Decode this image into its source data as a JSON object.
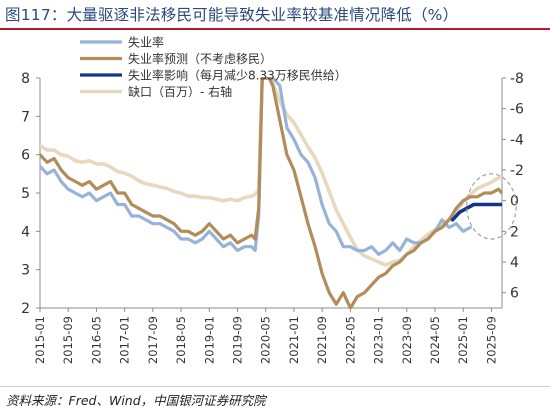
{
  "page": {
    "title": "图117：大量驱逐非法移民可能导致失业率较基准情况降低（%）",
    "source": "资料来源：Fred、Wind，中国银河证券研究院"
  },
  "colors": {
    "unemployment": "#98b3da",
    "forecast": "#b08d5a",
    "impact": "#14358c",
    "gap": "#e7d8bf",
    "title": "#2a4a7f",
    "rule": "#b8182b"
  },
  "chart_data": {
    "type": "line",
    "title": "大量驱逐非法移民可能导致失业率较基准情况降低（%）",
    "xlabel": "",
    "ylabel": "",
    "y2label": "",
    "ylim": [
      2,
      8
    ],
    "y2lim": [
      7,
      -8
    ],
    "yticks": [
      2,
      3,
      4,
      5,
      6,
      7,
      8
    ],
    "y2ticks": [
      6,
      4,
      2,
      0,
      -2,
      -4,
      -6,
      -8
    ],
    "xticks": [
      "2015-01",
      "2015-09",
      "2016-05",
      "2017-01",
      "2017-09",
      "2018-05",
      "2019-01",
      "2019-09",
      "2020-05",
      "2021-01",
      "2021-09",
      "2022-05",
      "2023-01",
      "2023-09",
      "2024-05",
      "2025-01",
      "2025-09"
    ],
    "xrange": [
      "2015-01",
      "2025-12"
    ],
    "grid": false,
    "legend_position": "top-left",
    "series": [
      {
        "name": "失业率",
        "axis": "left",
        "points": [
          [
            "2015-01",
            5.7
          ],
          [
            "2015-03",
            5.5
          ],
          [
            "2015-05",
            5.6
          ],
          [
            "2015-07",
            5.3
          ],
          [
            "2015-09",
            5.1
          ],
          [
            "2015-11",
            5.0
          ],
          [
            "2016-01",
            4.9
          ],
          [
            "2016-03",
            5.0
          ],
          [
            "2016-05",
            4.8
          ],
          [
            "2016-07",
            4.9
          ],
          [
            "2016-09",
            5.0
          ],
          [
            "2016-11",
            4.7
          ],
          [
            "2017-01",
            4.7
          ],
          [
            "2017-03",
            4.4
          ],
          [
            "2017-05",
            4.4
          ],
          [
            "2017-07",
            4.3
          ],
          [
            "2017-09",
            4.2
          ],
          [
            "2017-11",
            4.2
          ],
          [
            "2018-01",
            4.1
          ],
          [
            "2018-03",
            4.0
          ],
          [
            "2018-05",
            3.8
          ],
          [
            "2018-07",
            3.8
          ],
          [
            "2018-09",
            3.7
          ],
          [
            "2018-11",
            3.8
          ],
          [
            "2019-01",
            4.0
          ],
          [
            "2019-03",
            3.8
          ],
          [
            "2019-05",
            3.6
          ],
          [
            "2019-07",
            3.7
          ],
          [
            "2019-09",
            3.5
          ],
          [
            "2019-11",
            3.6
          ],
          [
            "2020-01",
            3.6
          ],
          [
            "2020-02",
            3.5
          ],
          [
            "2020-03",
            4.4
          ],
          [
            "2020-04",
            8.0
          ],
          [
            "2020-06",
            8.0
          ],
          [
            "2020-07",
            8.0
          ],
          [
            "2020-09",
            7.8
          ],
          [
            "2020-11",
            6.7
          ],
          [
            "2021-01",
            6.4
          ],
          [
            "2021-03",
            6.0
          ],
          [
            "2021-05",
            5.8
          ],
          [
            "2021-07",
            5.4
          ],
          [
            "2021-09",
            4.7
          ],
          [
            "2021-11",
            4.2
          ],
          [
            "2022-01",
            4.0
          ],
          [
            "2022-03",
            3.6
          ],
          [
            "2022-05",
            3.6
          ],
          [
            "2022-07",
            3.5
          ],
          [
            "2022-09",
            3.5
          ],
          [
            "2022-11",
            3.6
          ],
          [
            "2023-01",
            3.4
          ],
          [
            "2023-03",
            3.5
          ],
          [
            "2023-05",
            3.7
          ],
          [
            "2023-07",
            3.5
          ],
          [
            "2023-09",
            3.8
          ],
          [
            "2023-11",
            3.7
          ],
          [
            "2024-01",
            3.7
          ],
          [
            "2024-03",
            3.8
          ],
          [
            "2024-05",
            4.0
          ],
          [
            "2024-07",
            4.3
          ],
          [
            "2024-09",
            4.1
          ],
          [
            "2024-11",
            4.2
          ],
          [
            "2025-01",
            4.0
          ],
          [
            "2025-03",
            4.1
          ]
        ]
      },
      {
        "name": "失业率预测（不考虑移民）",
        "axis": "left",
        "points": [
          [
            "2015-01",
            6.0
          ],
          [
            "2015-03",
            5.8
          ],
          [
            "2015-05",
            5.9
          ],
          [
            "2015-07",
            5.6
          ],
          [
            "2015-09",
            5.4
          ],
          [
            "2015-11",
            5.3
          ],
          [
            "2016-01",
            5.2
          ],
          [
            "2016-03",
            5.3
          ],
          [
            "2016-05",
            5.1
          ],
          [
            "2016-07",
            5.2
          ],
          [
            "2016-09",
            5.3
          ],
          [
            "2016-11",
            5.0
          ],
          [
            "2017-01",
            5.0
          ],
          [
            "2017-03",
            4.7
          ],
          [
            "2017-05",
            4.6
          ],
          [
            "2017-07",
            4.5
          ],
          [
            "2017-09",
            4.4
          ],
          [
            "2017-11",
            4.4
          ],
          [
            "2018-01",
            4.3
          ],
          [
            "2018-03",
            4.2
          ],
          [
            "2018-05",
            4.0
          ],
          [
            "2018-07",
            4.0
          ],
          [
            "2018-09",
            3.9
          ],
          [
            "2018-11",
            4.0
          ],
          [
            "2019-01",
            4.2
          ],
          [
            "2019-03",
            4.0
          ],
          [
            "2019-05",
            3.8
          ],
          [
            "2019-07",
            3.9
          ],
          [
            "2019-09",
            3.7
          ],
          [
            "2019-11",
            3.8
          ],
          [
            "2020-01",
            3.9
          ],
          [
            "2020-02",
            3.8
          ],
          [
            "2020-03",
            4.6
          ],
          [
            "2020-04",
            8.0
          ],
          [
            "2020-06",
            8.0
          ],
          [
            "2020-07",
            7.8
          ],
          [
            "2020-09",
            6.9
          ],
          [
            "2020-11",
            6.0
          ],
          [
            "2021-01",
            5.6
          ],
          [
            "2021-03",
            4.9
          ],
          [
            "2021-05",
            4.2
          ],
          [
            "2021-07",
            3.6
          ],
          [
            "2021-09",
            2.9
          ],
          [
            "2021-11",
            2.4
          ],
          [
            "2022-01",
            2.1
          ],
          [
            "2022-03",
            2.4
          ],
          [
            "2022-05",
            2.0
          ],
          [
            "2022-07",
            2.3
          ],
          [
            "2022-09",
            2.4
          ],
          [
            "2022-11",
            2.6
          ],
          [
            "2023-01",
            2.8
          ],
          [
            "2023-03",
            2.9
          ],
          [
            "2023-05",
            3.1
          ],
          [
            "2023-07",
            3.2
          ],
          [
            "2023-09",
            3.4
          ],
          [
            "2023-11",
            3.5
          ],
          [
            "2024-01",
            3.7
          ],
          [
            "2024-03",
            3.8
          ],
          [
            "2024-05",
            4.0
          ],
          [
            "2024-07",
            4.1
          ],
          [
            "2024-09",
            4.3
          ],
          [
            "2024-11",
            4.6
          ],
          [
            "2025-01",
            4.8
          ],
          [
            "2025-03",
            4.9
          ],
          [
            "2025-05",
            4.9
          ],
          [
            "2025-07",
            5.0
          ],
          [
            "2025-09",
            5.0
          ],
          [
            "2025-11",
            5.1
          ],
          [
            "2025-12",
            5.0
          ]
        ]
      },
      {
        "name": "失业率影响（每月减少8.33万移民供给）",
        "axis": "left",
        "points": [
          [
            "2024-10",
            4.3
          ],
          [
            "2024-12",
            4.5
          ],
          [
            "2025-02",
            4.6
          ],
          [
            "2025-04",
            4.7
          ],
          [
            "2025-06",
            4.7
          ],
          [
            "2025-08",
            4.7
          ],
          [
            "2025-10",
            4.7
          ],
          [
            "2025-12",
            4.7
          ]
        ]
      },
      {
        "name": "缺口（百万）- 右轴",
        "axis": "right",
        "points": [
          [
            "2015-01",
            -3.6
          ],
          [
            "2015-03",
            -3.3
          ],
          [
            "2015-05",
            -3.3
          ],
          [
            "2015-07",
            -3.0
          ],
          [
            "2015-09",
            -2.9
          ],
          [
            "2015-11",
            -2.6
          ],
          [
            "2016-01",
            -2.5
          ],
          [
            "2016-03",
            -2.6
          ],
          [
            "2016-05",
            -2.4
          ],
          [
            "2016-07",
            -2.4
          ],
          [
            "2016-09",
            -2.2
          ],
          [
            "2016-11",
            -1.9
          ],
          [
            "2017-01",
            -1.8
          ],
          [
            "2017-03",
            -1.6
          ],
          [
            "2017-05",
            -1.3
          ],
          [
            "2017-07",
            -1.1
          ],
          [
            "2017-09",
            -1.0
          ],
          [
            "2017-11",
            -0.9
          ],
          [
            "2018-01",
            -0.8
          ],
          [
            "2018-03",
            -0.6
          ],
          [
            "2018-05",
            -0.5
          ],
          [
            "2018-07",
            -0.3
          ],
          [
            "2018-09",
            -0.3
          ],
          [
            "2018-11",
            -0.2
          ],
          [
            "2019-01",
            -0.2
          ],
          [
            "2019-03",
            -0.1
          ],
          [
            "2019-05",
            0.0
          ],
          [
            "2019-07",
            -0.1
          ],
          [
            "2019-09",
            0.0
          ],
          [
            "2019-11",
            -0.2
          ],
          [
            "2020-01",
            -0.3
          ],
          [
            "2020-02",
            -0.4
          ],
          [
            "2020-03",
            -0.7
          ],
          [
            "2020-04",
            -8.0
          ],
          [
            "2020-06",
            -8.0
          ],
          [
            "2020-07",
            -7.6
          ],
          [
            "2020-09",
            -6.5
          ],
          [
            "2020-11",
            -5.6
          ],
          [
            "2021-01",
            -5.1
          ],
          [
            "2021-03",
            -4.3
          ],
          [
            "2021-05",
            -3.5
          ],
          [
            "2021-07",
            -2.8
          ],
          [
            "2021-09",
            -1.8
          ],
          [
            "2021-11",
            -0.6
          ],
          [
            "2022-01",
            0.6
          ],
          [
            "2022-03",
            1.5
          ],
          [
            "2022-05",
            2.4
          ],
          [
            "2022-07",
            3.2
          ],
          [
            "2022-09",
            3.6
          ],
          [
            "2022-11",
            3.8
          ],
          [
            "2023-01",
            4.0
          ],
          [
            "2023-03",
            4.2
          ],
          [
            "2023-05",
            4.0
          ],
          [
            "2023-07",
            3.9
          ],
          [
            "2023-09",
            3.5
          ],
          [
            "2023-11",
            3.0
          ],
          [
            "2024-01",
            2.6
          ],
          [
            "2024-03",
            2.2
          ],
          [
            "2024-05",
            1.9
          ],
          [
            "2024-07",
            1.6
          ],
          [
            "2024-09",
            1.2
          ],
          [
            "2024-11",
            0.7
          ],
          [
            "2025-01",
            0.1
          ],
          [
            "2025-03",
            -0.4
          ],
          [
            "2025-05",
            -0.8
          ],
          [
            "2025-07",
            -1.0
          ],
          [
            "2025-09",
            -1.2
          ],
          [
            "2025-11",
            -1.5
          ],
          [
            "2025-12",
            -1.5
          ]
        ]
      }
    ],
    "annotations": [
      {
        "type": "dashed-circle",
        "center": [
          "2025-09",
          4.65
        ],
        "radius_x_months": 7,
        "radius_y": 0.85
      }
    ]
  }
}
